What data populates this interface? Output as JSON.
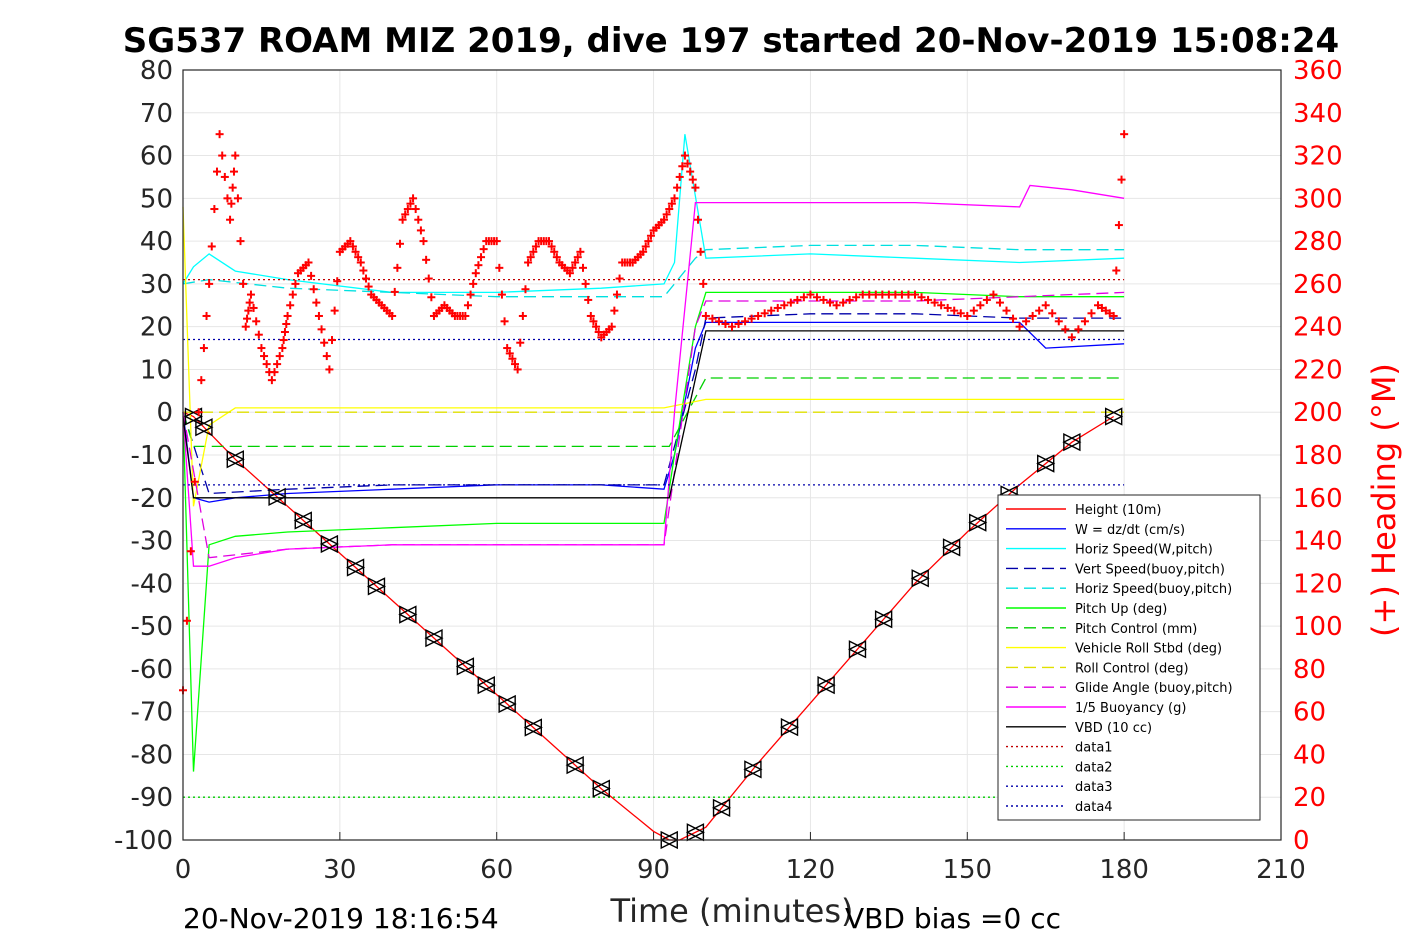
{
  "chart_data": {
    "type": "line",
    "title": "SG537 ROAM MIZ 2019, dive 197 started 20-Nov-2019 15:08:24",
    "xlabel": "Time (minutes)",
    "ylabel_right": "(+) Heading (°M)",
    "xlim": [
      0,
      210
    ],
    "ylim": [
      -100,
      80
    ],
    "ylim_right": [
      0,
      360
    ],
    "xticks": [
      0,
      30,
      60,
      90,
      120,
      150,
      180,
      210
    ],
    "yticks": [
      80,
      70,
      60,
      50,
      40,
      30,
      20,
      10,
      0,
      -10,
      -20,
      -30,
      -40,
      -50,
      -60,
      -70,
      -80,
      -90,
      -100
    ],
    "yticks_right": [
      360,
      340,
      320,
      300,
      280,
      260,
      240,
      220,
      200,
      180,
      160,
      140,
      120,
      100,
      80,
      60,
      40,
      20,
      0
    ],
    "grid": true,
    "legend_position": "lower-right",
    "colors": {
      "height": "#ff0000",
      "w": "#0000ff",
      "horiz_w": "#00ffff",
      "vert_buoy": "#0000aa",
      "horiz_buoy": "#00e0e0",
      "pitch": "#00ff00",
      "pitch_ctrl": "#00d000",
      "roll": "#ffff00",
      "roll_ctrl": "#e0e000",
      "glide": "#e000e0",
      "buoyancy": "#ff00ff",
      "vbd": "#000000",
      "heading": "#ff0000"
    },
    "series": [
      {
        "name": "Height (10m)",
        "x": [
          0,
          2,
          10,
          20,
          30,
          40,
          50,
          60,
          70,
          80,
          90,
          93,
          95,
          100,
          110,
          120,
          130,
          140,
          150,
          160,
          170,
          178
        ],
        "values": [
          0,
          -1,
          -11,
          -22,
          -33,
          -44,
          -55,
          -66,
          -77,
          -88,
          -98,
          -100,
          -100,
          -97,
          -82,
          -68,
          -54,
          -40,
          -28,
          -17,
          -7,
          -1
        ]
      },
      {
        "name": "W = dz/dt (cm/s)",
        "x": [
          0,
          2,
          5,
          10,
          20,
          40,
          60,
          80,
          92,
          94,
          98,
          100,
          120,
          140,
          160,
          165,
          180
        ],
        "values": [
          0,
          -20,
          -21,
          -20,
          -19,
          -18,
          -17,
          -17,
          -18,
          -10,
          15,
          21,
          21,
          21,
          21,
          15,
          16
        ]
      },
      {
        "name": "Horiz Speed(W,pitch)",
        "x": [
          0,
          2,
          5,
          10,
          20,
          40,
          60,
          80,
          92,
          94,
          96,
          100,
          120,
          140,
          160,
          180
        ],
        "values": [
          30,
          34,
          37,
          33,
          31,
          28,
          28,
          29,
          30,
          35,
          65,
          36,
          37,
          36,
          35,
          36
        ]
      },
      {
        "name": "Vert Speed(buoy,pitch)",
        "x": [
          0,
          5,
          20,
          40,
          60,
          80,
          92,
          98,
          100,
          120,
          140,
          160,
          180
        ],
        "values": [
          0,
          -19,
          -18,
          -17,
          -17,
          -17,
          -17,
          10,
          22,
          23,
          23,
          22,
          22
        ]
      },
      {
        "name": "Horiz Speed(buoy,pitch)",
        "x": [
          0,
          5,
          20,
          40,
          60,
          80,
          92,
          98,
          100,
          120,
          140,
          160,
          180
        ],
        "values": [
          30,
          31,
          29,
          28,
          27,
          27,
          27,
          36,
          38,
          39,
          39,
          38,
          38
        ]
      },
      {
        "name": "Pitch Up (deg)",
        "x": [
          0,
          2,
          5,
          10,
          20,
          40,
          60,
          80,
          92,
          94,
          98,
          100,
          120,
          140,
          160,
          180
        ],
        "values": [
          0,
          -84,
          -31,
          -29,
          -28,
          -27,
          -26,
          -26,
          -26,
          -10,
          20,
          28,
          28,
          28,
          27,
          27
        ]
      },
      {
        "name": "Pitch Control (mm)",
        "x": [
          0,
          2,
          5,
          92,
          93,
          100,
          180
        ],
        "values": [
          0,
          -8,
          -8,
          -8,
          -8,
          8,
          8
        ]
      },
      {
        "name": "Vehicle Roll Stbd (deg)",
        "x": [
          0,
          2,
          5,
          10,
          20,
          40,
          60,
          80,
          92,
          100,
          120,
          140,
          160,
          180
        ],
        "values": [
          48,
          -22,
          -3,
          1,
          1,
          1,
          1,
          1,
          1,
          3,
          3,
          3,
          3,
          3
        ]
      },
      {
        "name": "Roll Control (deg)",
        "x": [
          0,
          5,
          180
        ],
        "values": [
          0,
          0,
          0
        ]
      },
      {
        "name": "Glide Angle (buoy,pitch)",
        "x": [
          0,
          5,
          20,
          40,
          60,
          80,
          92,
          98,
          100,
          120,
          140,
          160,
          180
        ],
        "values": [
          0,
          -34,
          -32,
          -31,
          -31,
          -31,
          -31,
          20,
          26,
          26,
          26,
          27,
          28
        ]
      },
      {
        "name": "1/5 Buoyancy (g)",
        "x": [
          0,
          2,
          5,
          10,
          20,
          40,
          60,
          80,
          92,
          94,
          98,
          100,
          120,
          140,
          160,
          162,
          170,
          180
        ],
        "values": [
          0,
          -36,
          -36,
          -34,
          -32,
          -31,
          -31,
          -31,
          -31,
          0,
          49,
          49,
          49,
          49,
          48,
          53,
          52,
          50
        ]
      },
      {
        "name": "VBD (10 cc)",
        "x": [
          0,
          2,
          5,
          92,
          93,
          100,
          180
        ],
        "values": [
          -1,
          -20,
          -20,
          -20,
          -20,
          19,
          19
        ]
      },
      {
        "name": "data1",
        "x": [
          0,
          180
        ],
        "values": [
          31,
          31
        ]
      },
      {
        "name": "data2",
        "x": [
          0,
          180
        ],
        "values": [
          -90,
          -90
        ]
      },
      {
        "name": "data3",
        "x": [
          0,
          180
        ],
        "values": [
          17,
          17
        ]
      },
      {
        "name": "data4",
        "x": [
          0,
          180
        ],
        "values": [
          -17,
          -17
        ]
      }
    ],
    "heading_series": {
      "x": [
        0,
        3,
        5,
        7,
        9,
        10,
        12,
        13,
        15,
        17,
        19,
        20,
        22,
        24,
        26,
        28,
        30,
        32,
        34,
        36,
        38,
        40,
        42,
        44,
        46,
        48,
        50,
        52,
        54,
        56,
        58,
        60,
        62,
        64,
        66,
        68,
        70,
        72,
        74,
        76,
        78,
        80,
        82,
        84,
        86,
        88,
        90,
        92,
        94,
        96,
        98,
        100,
        105,
        110,
        115,
        120,
        125,
        130,
        135,
        140,
        145,
        150,
        155,
        160,
        165,
        170,
        175,
        178,
        180
      ],
      "values": [
        70,
        200,
        260,
        330,
        290,
        320,
        240,
        255,
        230,
        215,
        230,
        245,
        265,
        270,
        245,
        220,
        275,
        280,
        270,
        255,
        250,
        245,
        290,
        300,
        280,
        245,
        250,
        245,
        245,
        265,
        280,
        280,
        230,
        220,
        270,
        280,
        280,
        270,
        265,
        275,
        245,
        235,
        240,
        270,
        270,
        275,
        285,
        290,
        300,
        320,
        305,
        245,
        240,
        245,
        250,
        255,
        250,
        255,
        255,
        255,
        250,
        245,
        255,
        240,
        250,
        235,
        250,
        245,
        330
      ]
    },
    "dive_markers_x": [
      2,
      4,
      10,
      18,
      23,
      28,
      33,
      37,
      43,
      48,
      54,
      58,
      62,
      67,
      75,
      80,
      93,
      98,
      103,
      109,
      116,
      123,
      129,
      134,
      141,
      147,
      152,
      158,
      165,
      170,
      178
    ],
    "footer_left": "20-Nov-2019 18:16:54",
    "footer_right": "VBD bias =0 cc"
  }
}
